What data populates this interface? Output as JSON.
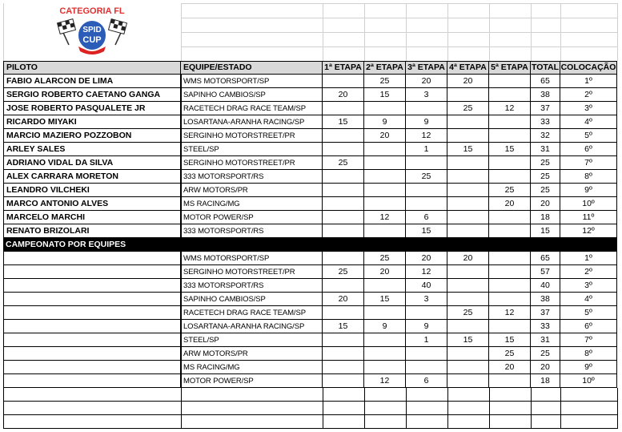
{
  "header": {
    "category": "CATEGORIA FL",
    "logo": [
      "SPID",
      "CUP"
    ]
  },
  "table": {
    "columns": [
      "PILOTO",
      "EQUIPE/ESTADO",
      "1ª ETAPA",
      "2ª ETAPA",
      "3ª ETAPA",
      "4ª ETAPA",
      "5ª ETAPA",
      "TOTAL",
      "COLOCAÇÃO"
    ],
    "rows": [
      [
        "FABIO ALARCON DE LIMA",
        "WMS MOTORSPORT/SP",
        null,
        25,
        20,
        20,
        null,
        65,
        "1º"
      ],
      [
        "SERGIO ROBERTO CAETANO GANGA",
        "SAPINHO CAMBIOS/SP",
        20,
        15,
        3,
        null,
        null,
        38,
        "2º"
      ],
      [
        "JOSE ROBERTO PASQUALETE JR",
        "RACETECH DRAG RACE TEAM/SP",
        null,
        null,
        null,
        25,
        12,
        37,
        "3º"
      ],
      [
        "RICARDO MIYAKI",
        "LOSARTANA-ARANHA RACING/SP",
        15,
        9,
        9,
        null,
        null,
        33,
        "4º"
      ],
      [
        "MARCIO MAZIERO POZZOBON",
        "SERGINHO MOTORSTREET/PR",
        null,
        20,
        12,
        null,
        null,
        32,
        "5º"
      ],
      [
        "ARLEY SALES",
        "STEEL/SP",
        null,
        null,
        1,
        15,
        15,
        31,
        "6º"
      ],
      [
        "ADRIANO VIDAL DA SILVA",
        "SERGINHO MOTORSTREET/PR",
        25,
        null,
        null,
        null,
        null,
        25,
        "7º"
      ],
      [
        "ALEX CARRARA MORETON",
        "333 MOTORSPORT/RS",
        null,
        null,
        25,
        null,
        null,
        25,
        "8º"
      ],
      [
        "LEANDRO VILCHEKI",
        "ARW MOTORS/PR",
        null,
        null,
        null,
        null,
        25,
        25,
        "9º"
      ],
      [
        "MARCO ANTONIO ALVES",
        "MS RACING/MG",
        null,
        null,
        null,
        null,
        20,
        20,
        "10º"
      ],
      [
        "MARCELO MARCHI",
        "MOTOR POWER/SP",
        null,
        12,
        6,
        null,
        null,
        18,
        "11º"
      ],
      [
        "RENATO BRIZOLARI",
        "333 MOTORSPORT/RS",
        null,
        null,
        15,
        null,
        null,
        15,
        "12º"
      ]
    ]
  },
  "teams": {
    "title": "CAMPEONATO POR EQUIPES",
    "rows": [
      [
        null,
        "WMS MOTORSPORT/SP",
        null,
        25,
        20,
        20,
        null,
        65,
        "1º"
      ],
      [
        null,
        "SERGINHO MOTORSTREET/PR",
        25,
        20,
        12,
        null,
        null,
        57,
        "2º"
      ],
      [
        null,
        "333 MOTORSPORT/RS",
        null,
        null,
        40,
        null,
        null,
        40,
        "3º"
      ],
      [
        null,
        "SAPINHO CAMBIOS/SP",
        20,
        15,
        3,
        null,
        null,
        38,
        "4º"
      ],
      [
        null,
        "RACETECH DRAG RACE TEAM/SP",
        null,
        null,
        null,
        25,
        12,
        37,
        "5º"
      ],
      [
        null,
        "LOSARTANA-ARANHA RACING/SP",
        15,
        9,
        9,
        null,
        null,
        33,
        "6º"
      ],
      [
        null,
        "STEEL/SP",
        null,
        null,
        1,
        15,
        15,
        31,
        "7º"
      ],
      [
        null,
        "ARW MOTORS/PR",
        null,
        null,
        null,
        null,
        25,
        25,
        "8º"
      ],
      [
        null,
        "MS RACING/MG",
        null,
        null,
        null,
        null,
        20,
        20,
        "9º"
      ],
      [
        null,
        "MOTOR POWER/SP",
        null,
        12,
        6,
        null,
        null,
        18,
        "10º"
      ]
    ]
  }
}
